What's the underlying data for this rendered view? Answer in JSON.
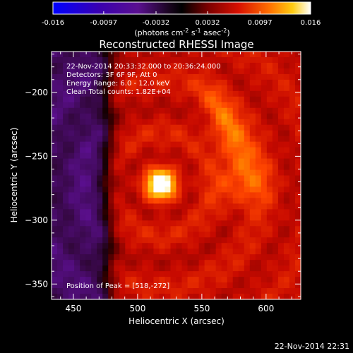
{
  "colorbar": {
    "ticks": [
      "-0.016",
      "-0.0097",
      "-0.0032",
      "0.0032",
      "0.0097",
      "0.016"
    ],
    "tick_values": [
      -0.016,
      -0.0097,
      -0.0032,
      0.0032,
      0.0097,
      0.016
    ],
    "range": [
      -0.016,
      0.016
    ],
    "unit_parts": [
      "(photons cm",
      "-2",
      " s",
      "-1",
      " asec",
      "-2",
      ")"
    ]
  },
  "title": "Reconstructed RHESSI Image",
  "info": {
    "line1": "22-Nov-2014 20:33:32.000 to 20:36:24.000",
    "line2": "Detectors: 3F 6F 9F, Att 0",
    "line3": "Energy Range: 6.0 - 12.0 keV",
    "line4": "Clean    Total counts: 1.82E+04"
  },
  "peak_label": "Position of Peak = [518,-272]",
  "timestamp": "22-Nov-2014 22:31",
  "chart_data": {
    "type": "heatmap",
    "title": "Reconstructed RHESSI Image",
    "xlabel": "Heliocentric X (arcsec)",
    "ylabel": "Heliocentric Y (arcsec)",
    "xlim": [
      433,
      627
    ],
    "ylim": [
      -362,
      -168
    ],
    "x_ticks": [
      450,
      500,
      550,
      600
    ],
    "y_ticks": [
      -200,
      -250,
      -300,
      -350
    ],
    "x_tick_labels": [
      "450",
      "500",
      "550",
      "600"
    ],
    "y_tick_labels": [
      "−200",
      "−250",
      "−300",
      "−350"
    ],
    "colormap": "rhessi-blue-purple-red-yellow-white",
    "color_stops": [
      "#0000ff",
      "#3a00b0",
      "#6a0aa0",
      "#000000",
      "#5a0000",
      "#c00000",
      "#ff3c00",
      "#ff9a00",
      "#ffd200",
      "#ffffff"
    ],
    "peak": {
      "x": 518,
      "y": -272,
      "value": 0.016
    },
    "secondary_feature": {
      "x": 572,
      "y": -232,
      "value": 0.01
    },
    "value_range": [
      -0.016,
      0.016
    ]
  }
}
